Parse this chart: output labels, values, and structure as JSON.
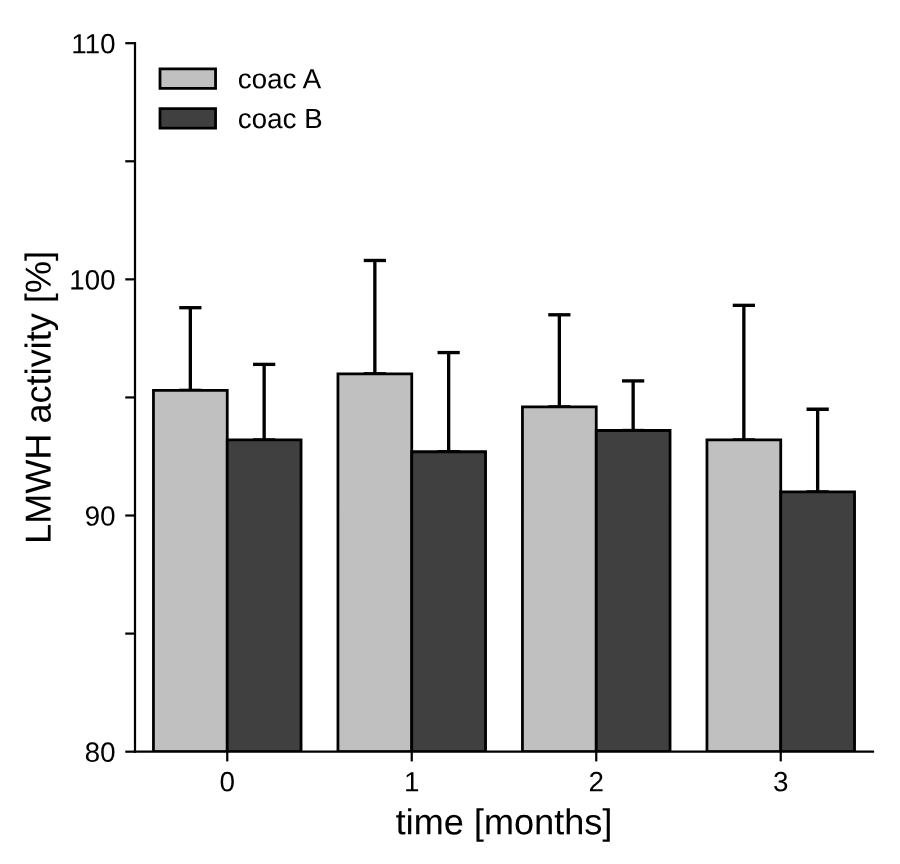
{
  "chart_data": {
    "type": "bar",
    "xlabel": "time [months]",
    "ylabel": "LMWH activity [%]",
    "categories": [
      "0",
      "1",
      "2",
      "3"
    ],
    "series": [
      {
        "name": "coac A",
        "color": "#c0c0c0",
        "values": [
          95.3,
          96.0,
          94.6,
          93.2
        ],
        "errors": [
          [
            95.3,
            98.8
          ],
          [
            96.0,
            100.8
          ],
          [
            94.6,
            98.5
          ],
          [
            93.2,
            98.9
          ]
        ]
      },
      {
        "name": "coac B",
        "color": "#404040",
        "values": [
          93.2,
          92.7,
          93.6,
          91.0
        ],
        "errors": [
          [
            93.2,
            96.4
          ],
          [
            92.7,
            96.9
          ],
          [
            93.6,
            95.7
          ],
          [
            91.0,
            94.5
          ]
        ]
      }
    ],
    "ylim": [
      80,
      110
    ],
    "yticks": [
      80,
      {
        "value": 85,
        "label": null
      },
      90,
      {
        "value": 95,
        "label": null
      },
      100,
      {
        "value": 105,
        "label": null
      },
      110
    ],
    "grid": false,
    "legend": "top left"
  }
}
